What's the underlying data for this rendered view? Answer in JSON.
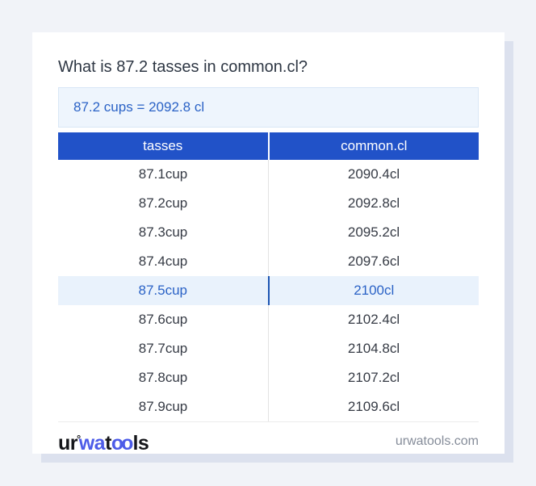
{
  "question": {
    "title": "What is 87.2 tasses in common.cl?"
  },
  "result": {
    "text": "87.2 cups = 2092.8 cl"
  },
  "table": {
    "headers": [
      "tasses",
      "common.cl"
    ],
    "rows": [
      [
        "87.1cup",
        "2090.4cl"
      ],
      [
        "87.2cup",
        "2092.8cl"
      ],
      [
        "87.3cup",
        "2095.2cl"
      ],
      [
        "87.4cup",
        "2097.6cl"
      ],
      [
        "87.5cup",
        "2100cl"
      ],
      [
        "87.6cup",
        "2102.4cl"
      ],
      [
        "87.7cup",
        "2104.8cl"
      ],
      [
        "87.8cup",
        "2107.2cl"
      ],
      [
        "87.9cup",
        "2109.6cl"
      ]
    ],
    "highlighted_row_index": 4
  },
  "footer": {
    "logo": {
      "part1": "ur",
      "ring": "°",
      "part2": "wa",
      "part3": "t",
      "part4": "oo",
      "part5": "ls"
    },
    "site": "urwatools.com"
  },
  "colors": {
    "header_blue": "#2152c8",
    "result_text_blue": "#2a62c6",
    "result_box_bg": "#eef5fd",
    "highlight_row_bg": "#e9f2fc",
    "highlight_divider_blue": "#1d55b2",
    "logo_blue": "#4d5ce8",
    "page_bg": "#f1f3f8",
    "card_shadow": "#dce1ee",
    "title_text": "#2e3744",
    "row_text": "#363b45",
    "site_text": "#858c99"
  }
}
